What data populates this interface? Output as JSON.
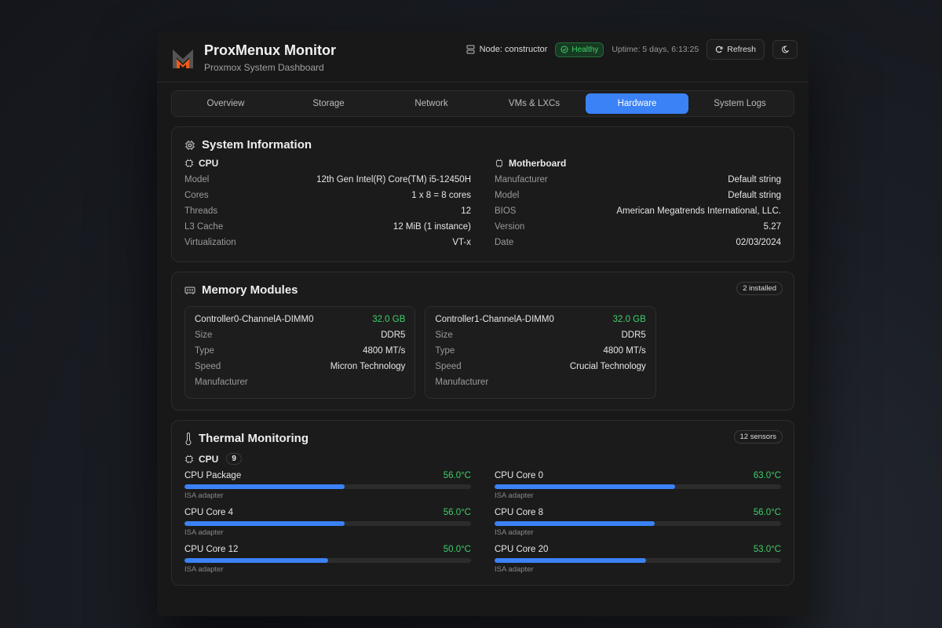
{
  "app": {
    "title": "ProxMenux Monitor",
    "subtitle": "Proxmox System Dashboard",
    "logo_text": "M"
  },
  "status": {
    "node": "Node: constructor",
    "health": "Healthy",
    "uptime": "Uptime: 5 days, 6:13:25",
    "refresh": "Refresh"
  },
  "tabs": [
    {
      "label": "Overview"
    },
    {
      "label": "Storage"
    },
    {
      "label": "Network"
    },
    {
      "label": "VMs & LXCs"
    },
    {
      "label": "Hardware"
    },
    {
      "label": "System Logs"
    }
  ],
  "active_tab": "Hardware",
  "system": {
    "title": "System Information",
    "cpu": {
      "heading": "CPU",
      "rows": [
        {
          "label": "Model",
          "value": "12th Gen Intel(R) Core(TM) i5-12450H"
        },
        {
          "label": "Cores",
          "value": "1 x 8 = 8 cores"
        },
        {
          "label": "Threads",
          "value": "12"
        },
        {
          "label": "L3 Cache",
          "value": "12 MiB (1 instance)"
        },
        {
          "label": "Virtualization",
          "value": "VT-x"
        }
      ]
    },
    "motherboard": {
      "heading": "Motherboard",
      "rows": [
        {
          "label": "Manufacturer",
          "value": "Default string"
        },
        {
          "label": "Model",
          "value": "Default string"
        },
        {
          "label": "BIOS",
          "value": "American Megatrends International, LLC."
        },
        {
          "label": "Version",
          "value": "5.27"
        },
        {
          "label": "Date",
          "value": "02/03/2024"
        }
      ]
    }
  },
  "memory": {
    "title": "Memory Modules",
    "badge": "2 installed",
    "modules": [
      {
        "name": "Controller0-ChannelA-DIMM0",
        "capacity": "32.0 GB",
        "rows": [
          {
            "label": "Size",
            "value": "DDR5"
          },
          {
            "label": "Type",
            "value": "4800 MT/s"
          },
          {
            "label": "Speed",
            "value": "Micron Technology"
          },
          {
            "label": "Manufacturer",
            "value": ""
          }
        ]
      },
      {
        "name": "Controller1-ChannelA-DIMM0",
        "capacity": "32.0 GB",
        "rows": [
          {
            "label": "Size",
            "value": "DDR5"
          },
          {
            "label": "Type",
            "value": "4800 MT/s"
          },
          {
            "label": "Speed",
            "value": "Crucial Technology"
          },
          {
            "label": "Manufacturer",
            "value": ""
          }
        ]
      }
    ]
  },
  "thermal": {
    "title": "Thermal Monitoring",
    "badge": "12 sensors",
    "group": "CPU",
    "group_count": "9",
    "sensors": [
      {
        "name": "CPU Package",
        "value": "56.0°C",
        "level": 0.56,
        "adapter": "ISA adapter"
      },
      {
        "name": "CPU Core 0",
        "value": "63.0°C",
        "level": 0.63,
        "adapter": "ISA adapter"
      },
      {
        "name": "CPU Core 4",
        "value": "56.0°C",
        "level": 0.56,
        "adapter": "ISA adapter"
      },
      {
        "name": "CPU Core 8",
        "value": "56.0°C",
        "level": 0.56,
        "adapter": "ISA adapter"
      },
      {
        "name": "CPU Core 12",
        "value": "50.0°C",
        "level": 0.5,
        "adapter": "ISA adapter"
      },
      {
        "name": "CPU Core 20",
        "value": "53.0°C",
        "level": 0.53,
        "adapter": "ISA adapter"
      }
    ]
  },
  "colors": {
    "accent": "#3b82f6",
    "healthy": "#3fcf6a",
    "logo_orange": "#f05a1a"
  }
}
